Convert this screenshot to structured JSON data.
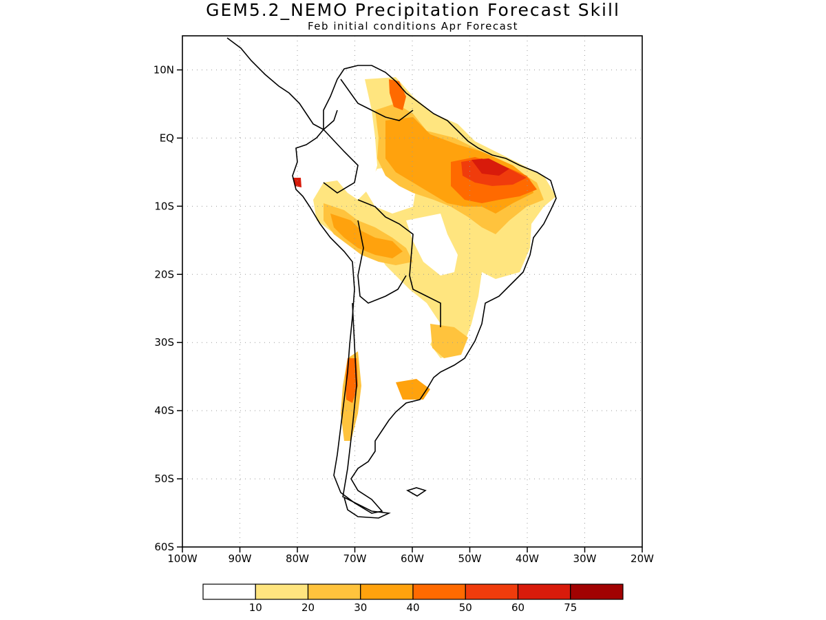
{
  "title": "GEM5.2_NEMO Precipitation Forecast Skill",
  "subtitle": "Feb initial conditions  Apr Forecast",
  "map": {
    "lon_range": [
      -100,
      -20
    ],
    "lat_range": [
      -60,
      15
    ],
    "lat_ticks": [
      {
        "value": 10,
        "label": "10N"
      },
      {
        "value": 0,
        "label": "EQ"
      },
      {
        "value": -10,
        "label": "10S"
      },
      {
        "value": -20,
        "label": "20S"
      },
      {
        "value": -30,
        "label": "30S"
      },
      {
        "value": -40,
        "label": "40S"
      },
      {
        "value": -50,
        "label": "50S"
      },
      {
        "value": -60,
        "label": "60S"
      }
    ],
    "lon_ticks": [
      {
        "value": -100,
        "label": "100W"
      },
      {
        "value": -90,
        "label": "90W"
      },
      {
        "value": -80,
        "label": "80W"
      },
      {
        "value": -70,
        "label": "70W"
      },
      {
        "value": -60,
        "label": "60W"
      },
      {
        "value": -50,
        "label": "50W"
      },
      {
        "value": -40,
        "label": "40W"
      },
      {
        "value": -30,
        "label": "30W"
      },
      {
        "value": -20,
        "label": "20W"
      }
    ],
    "grid": true,
    "coastline_color": "#000000"
  },
  "colorbar": {
    "labels": [
      "10",
      "20",
      "30",
      "40",
      "50",
      "60",
      "75"
    ],
    "colors": [
      "#ffffff",
      "#ffe57f",
      "#ffc33d",
      "#ffa20d",
      "#ff6a00",
      "#f03c0c",
      "#d81b0b",
      "#a10202"
    ]
  },
  "skill_regions": [
    {
      "level": 1,
      "color": "#ffe57f"
    },
    {
      "level": 2,
      "color": "#ffc33d"
    },
    {
      "level": 3,
      "color": "#ffa20d"
    },
    {
      "level": 4,
      "color": "#ff6a00"
    },
    {
      "level": 5,
      "color": "#f03c0c"
    },
    {
      "level": 6,
      "color": "#d81b0b"
    }
  ]
}
